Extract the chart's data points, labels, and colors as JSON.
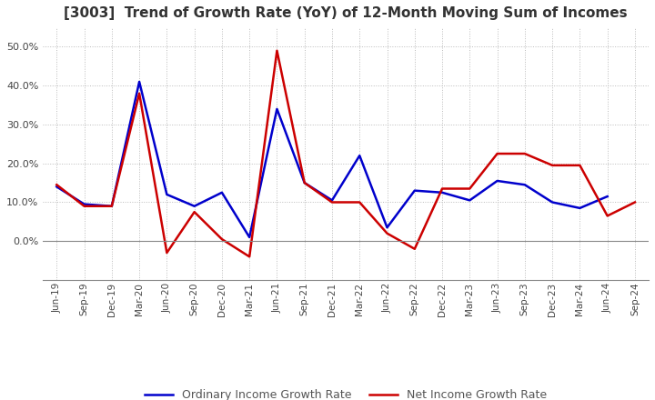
{
  "title": "[3003]  Trend of Growth Rate (YoY) of 12-Month Moving Sum of Incomes",
  "title_fontsize": 11,
  "x_labels": [
    "Jun-19",
    "Sep-19",
    "Dec-19",
    "Mar-20",
    "Jun-20",
    "Sep-20",
    "Dec-20",
    "Mar-21",
    "Jun-21",
    "Sep-21",
    "Dec-21",
    "Mar-22",
    "Jun-22",
    "Sep-22",
    "Dec-22",
    "Mar-23",
    "Jun-23",
    "Sep-23",
    "Dec-23",
    "Mar-24",
    "Jun-24",
    "Sep-24"
  ],
  "ordinary_income": [
    14.0,
    9.5,
    9.0,
    41.0,
    12.0,
    9.0,
    12.5,
    1.0,
    34.0,
    15.0,
    10.5,
    22.0,
    3.5,
    13.0,
    12.5,
    10.5,
    15.5,
    14.5,
    10.0,
    8.5,
    11.5,
    null
  ],
  "net_income": [
    14.5,
    9.0,
    9.0,
    38.0,
    -3.0,
    7.5,
    0.5,
    -4.0,
    49.0,
    15.0,
    10.0,
    10.0,
    2.0,
    -2.0,
    13.5,
    13.5,
    22.5,
    22.5,
    19.5,
    19.5,
    6.5,
    10.0
  ],
  "ylim": [
    -10,
    55
  ],
  "yticks": [
    0.0,
    10.0,
    20.0,
    30.0,
    40.0,
    50.0
  ],
  "ordinary_color": "#0000CC",
  "net_color": "#CC0000",
  "background_color": "#FFFFFF",
  "grid_color": "#BBBBBB",
  "legend_labels": [
    "Ordinary Income Growth Rate",
    "Net Income Growth Rate"
  ]
}
